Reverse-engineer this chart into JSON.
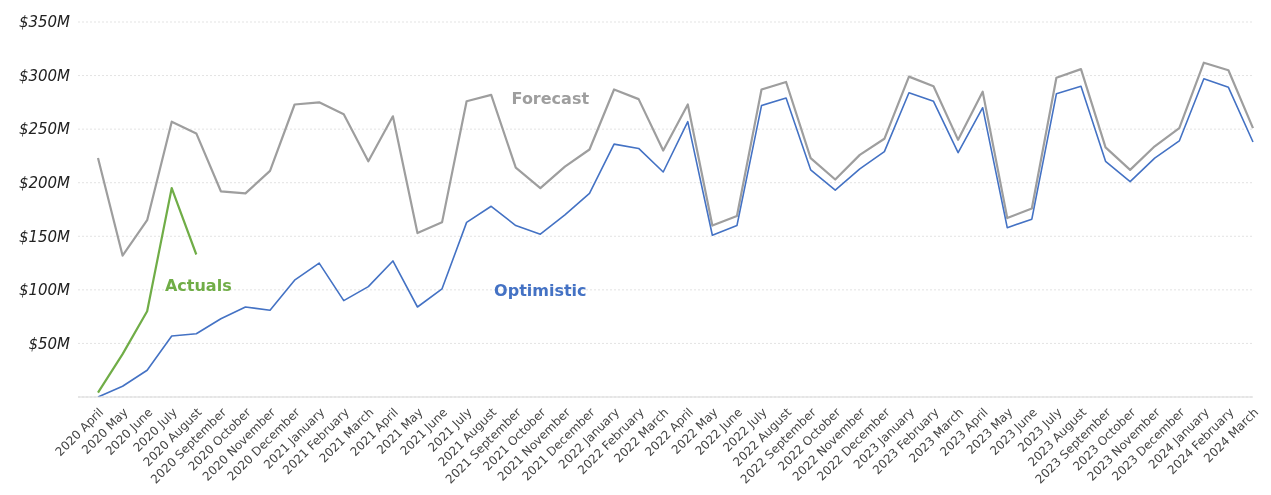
{
  "chart_data": {
    "type": "line",
    "categories": [
      "2020 April",
      "2020 May",
      "2020 June",
      "2020 July",
      "2020 August",
      "2020 September",
      "2020 October",
      "2020 November",
      "2020 December",
      "2021 January",
      "2021 February",
      "2021 March",
      "2021 April",
      "2021 May",
      "2021 June",
      "2021 July",
      "2021 August",
      "2021 September",
      "2021 October",
      "2021 November",
      "2021 December",
      "2022 January",
      "2022 February",
      "2022 March",
      "2022 April",
      "2022 May",
      "2022 June",
      "2022 July",
      "2022 August",
      "2022 September",
      "2022 October",
      "2022 November",
      "2022 December",
      "2023 January",
      "2023 February",
      "2023 March",
      "2023 April",
      "2023 May",
      "2023 June",
      "2023 July",
      "2023 August",
      "2023 September",
      "2023 October",
      "2023 November",
      "2023 December",
      "2024 January",
      "2024 February",
      "2024 March"
    ],
    "series": [
      {
        "name": "Forecast",
        "color": "#9e9e9e",
        "values": [
          223,
          132,
          165,
          257,
          246,
          192,
          190,
          211,
          273,
          275,
          264,
          220,
          262,
          153,
          163,
          276,
          282,
          214,
          195,
          215,
          231,
          287,
          278,
          230,
          273,
          160,
          169,
          287,
          294,
          223,
          203,
          226,
          241,
          299,
          290,
          240,
          285,
          167,
          176,
          298,
          306,
          233,
          212,
          234,
          251,
          312,
          305,
          251
        ]
      },
      {
        "name": "Optimistic",
        "color": "#4472c4",
        "values": [
          0,
          10,
          25,
          57,
          59,
          73,
          84,
          81,
          109,
          125,
          90,
          103,
          127,
          84,
          101,
          163,
          178,
          160,
          152,
          170,
          190,
          236,
          232,
          210,
          257,
          151,
          160,
          272,
          279,
          212,
          193,
          213,
          229,
          284,
          276,
          228,
          270,
          158,
          166,
          283,
          290,
          220,
          201,
          223,
          239,
          297,
          289,
          238
        ]
      },
      {
        "name": "Actuals",
        "color": "#70ad47",
        "values": [
          4,
          40,
          80,
          195,
          133,
          null,
          null,
          null,
          null,
          null,
          null,
          null,
          null,
          null,
          null,
          null,
          null,
          null,
          null,
          null,
          null,
          null,
          null,
          null,
          null,
          null,
          null,
          null,
          null,
          null,
          null,
          null,
          null,
          null,
          null,
          null,
          null,
          null,
          null,
          null,
          null,
          null,
          null,
          null,
          null,
          null,
          null,
          null
        ]
      }
    ],
    "ylim": [
      0,
      350
    ],
    "yticks": [
      {
        "value": 0,
        "label": null
      },
      {
        "value": 50,
        "label": "$50M"
      },
      {
        "value": 100,
        "label": "$100M"
      },
      {
        "value": 150,
        "label": "$150M"
      },
      {
        "value": 200,
        "label": "$200M"
      },
      {
        "value": 250,
        "label": "$250M"
      },
      {
        "value": 300,
        "label": "$300M"
      },
      {
        "value": 350,
        "label": "$350M"
      }
    ],
    "grid": "y",
    "legend": false,
    "marker": "none",
    "line_style": "solid"
  }
}
